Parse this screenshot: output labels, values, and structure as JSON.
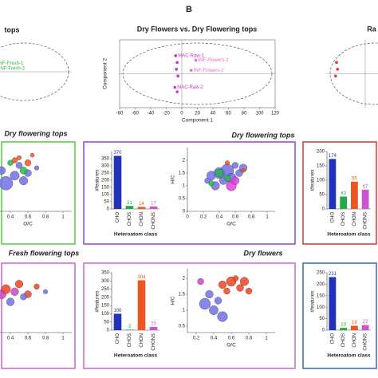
{
  "panel_label": "B",
  "chart_data": [
    {
      "type": "pca",
      "title": "tops",
      "xlim": [
        -20,
        120
      ],
      "ylim": [
        -30,
        30
      ],
      "series": [
        {
          "color": "#22bb33",
          "x": [
            8,
            10
          ],
          "y": [
            8,
            3
          ],
          "labels": [
            "INF-Fresh-1",
            "INF-Fresh-2"
          ]
        }
      ]
    },
    {
      "type": "pca",
      "title": "Dry Flowers vs. Dry Flowering tops",
      "xlabel": "Component 1",
      "ylabel": "Component 2",
      "xlim": [
        -80,
        120
      ],
      "ylim": [
        -30,
        30
      ],
      "xticks": [
        -80,
        -60,
        -40,
        -20,
        0,
        20,
        40,
        60,
        80,
        100,
        120
      ],
      "series": [
        {
          "color": "#cc33cc",
          "x": [
            -8,
            -6,
            -7,
            -5,
            -9,
            -6
          ],
          "y": [
            16,
            10,
            4,
            -2,
            -12,
            -16
          ],
          "labels": [
            "MAC-Raw-1",
            null,
            null,
            null,
            "MAC-Raw-2",
            null
          ]
        },
        {
          "color": "#ee66cc",
          "x": [
            18,
            12
          ],
          "y": [
            12,
            3
          ],
          "labels": [
            "INF-Flowers-1",
            "INF-Flowers-2"
          ]
        }
      ]
    },
    {
      "type": "pca",
      "title": "Ra",
      "xlim": [
        -80,
        120
      ],
      "ylim": [
        -30,
        30
      ],
      "series": [
        {
          "color": "#ee3333",
          "x": [
            -60,
            -58,
            -62
          ],
          "y": [
            10,
            4,
            -2
          ]
        }
      ]
    },
    {
      "type": "bubble",
      "title": "Dry flowering tops",
      "xlabel": "O/C",
      "xlim": [
        0.1,
        1.1
      ],
      "ylim": [
        0,
        2.5
      ],
      "xticks": [
        0.4,
        0.6,
        0.8,
        1
      ],
      "series": [
        {
          "color": "#7070e6",
          "x": [
            0.2,
            0.3,
            0.35,
            0.45,
            0.5,
            0.6,
            0.55,
            0.7
          ],
          "y": [
            1.3,
            1.6,
            1.1,
            1.4,
            1.8,
            1.5,
            1.2,
            1.7
          ],
          "size": [
            60,
            30,
            90,
            40,
            20,
            25,
            35,
            10
          ]
        },
        {
          "color": "#ee5522",
          "x": [
            0.45,
            0.6,
            0.5,
            0.65
          ],
          "y": [
            2.0,
            1.9,
            2.1,
            2.2
          ],
          "size": [
            15,
            20,
            10,
            8
          ]
        },
        {
          "color": "#22bb44",
          "x": [
            0.55,
            0.4
          ],
          "y": [
            1.6,
            1.9
          ],
          "size": [
            25,
            15
          ]
        }
      ]
    },
    {
      "type": "bar",
      "ylabel": "#features",
      "xlabel": "Heteroatom class",
      "categories": [
        "CHO",
        "CHOS",
        "CHON",
        "CHONS"
      ],
      "values": [
        370,
        21,
        14,
        17
      ],
      "colors": [
        "#2233bb",
        "#22aa44",
        "#ee5522",
        "#cc55cc"
      ],
      "ylim": [
        0,
        400
      ],
      "yticks": [
        0,
        50,
        100,
        150,
        200,
        250,
        300,
        350
      ]
    },
    {
      "type": "bubble",
      "title": "Dry flowering tops",
      "xlabel": "O/C",
      "ylabel": "H/C",
      "xlim": [
        0,
        1.1
      ],
      "ylim": [
        0,
        2.5
      ],
      "xticks": [
        0,
        0.2,
        0.4,
        0.6,
        0.8,
        1
      ],
      "yticks": [
        0,
        0.5,
        1,
        1.5,
        2
      ],
      "series": [
        {
          "color": "#7070e6",
          "x": [
            0.3,
            0.4,
            0.45,
            0.5,
            0.55,
            0.6,
            0.35,
            0.65,
            0.25,
            0.7
          ],
          "y": [
            1.4,
            1.5,
            1.2,
            1.6,
            1.3,
            1.8,
            1.0,
            1.5,
            1.2,
            1.7
          ],
          "size": [
            40,
            60,
            30,
            80,
            50,
            20,
            35,
            25,
            15,
            30
          ]
        },
        {
          "color": "#22bb44",
          "x": [
            0.4,
            0.5,
            0.3
          ],
          "y": [
            1.5,
            1.3,
            1.1
          ],
          "size": [
            30,
            20,
            15
          ]
        },
        {
          "color": "#e040e0",
          "x": [
            0.55,
            0.6
          ],
          "y": [
            1.0,
            1.2
          ],
          "size": [
            50,
            30
          ]
        },
        {
          "color": "#ee5522",
          "x": [
            0.5,
            0.7
          ],
          "y": [
            1.9,
            1.6
          ],
          "size": [
            10,
            8
          ]
        }
      ]
    },
    {
      "type": "bar",
      "ylabel": "#features",
      "xlabel": "Heteroatom class",
      "categories": [
        "CHO",
        "CHOS",
        "CHON",
        "CHONS"
      ],
      "values": [
        174,
        43,
        95,
        67
      ],
      "colors": [
        "#2233bb",
        "#22aa44",
        "#ee5522",
        "#cc55cc"
      ],
      "ylim": [
        0,
        200
      ],
      "yticks": [
        0,
        50,
        100,
        150,
        200
      ]
    },
    {
      "type": "bubble",
      "title": "Fresh flowering tops",
      "xlim": [
        0.1,
        1.1
      ],
      "ylim": [
        0,
        2.5
      ],
      "xticks": [
        0.4,
        0.6,
        0.8,
        1
      ],
      "series": [
        {
          "color": "#cc44cc",
          "x": [
            0.2,
            0.3,
            0.45
          ],
          "y": [
            1.3,
            1.5,
            1.6
          ],
          "size": [
            70,
            40,
            30
          ]
        },
        {
          "color": "#ee4422",
          "x": [
            0.35,
            0.5,
            0.6,
            0.7
          ],
          "y": [
            1.7,
            1.9,
            1.5,
            1.8
          ],
          "size": [
            40,
            30,
            25,
            15
          ]
        },
        {
          "color": "#7070e6",
          "x": [
            0.4,
            0.55,
            0.8
          ],
          "y": [
            1.2,
            1.4,
            1.6
          ],
          "size": [
            30,
            20,
            10
          ]
        }
      ]
    },
    {
      "type": "bar",
      "ylabel": "#features",
      "xlabel": "Heteroatom class",
      "categories": [
        "CHO",
        "CHOS",
        "CHON",
        "CHONS"
      ],
      "values": [
        100,
        3,
        304,
        20
      ],
      "colors": [
        "#2233bb",
        "#22aa44",
        "#ee5522",
        "#cc55cc"
      ],
      "ylim": [
        0,
        350
      ],
      "yticks": [
        0,
        50,
        100,
        150,
        200,
        250,
        300,
        350
      ]
    },
    {
      "type": "bubble",
      "title": "Dry flowers",
      "xlabel": "O/C",
      "ylabel": "H/C",
      "xlim": [
        0.1,
        1.1
      ],
      "ylim": [
        0.3,
        2.3
      ],
      "xticks": [
        0.2,
        0.4,
        0.6,
        0.8,
        1
      ],
      "yticks": [
        0.5,
        1,
        1.5,
        2
      ],
      "series": [
        {
          "color": "#ee4422",
          "x": [
            0.5,
            0.6,
            0.7,
            0.8,
            0.65,
            0.75,
            0.55
          ],
          "y": [
            1.8,
            1.9,
            1.7,
            1.6,
            2.0,
            1.9,
            1.6
          ],
          "size": [
            30,
            45,
            25,
            20,
            15,
            35,
            20
          ]
        },
        {
          "color": "#7070e6",
          "x": [
            0.3,
            0.4,
            0.35,
            0.5,
            0.45
          ],
          "y": [
            1.2,
            1.0,
            1.5,
            0.8,
            1.3
          ],
          "size": [
            60,
            40,
            30,
            50,
            25
          ]
        },
        {
          "color": "#cc44cc",
          "x": [
            0.25
          ],
          "y": [
            1.9
          ],
          "size": [
            20
          ]
        }
      ]
    },
    {
      "type": "bar",
      "ylabel": "#features",
      "xlabel": "Heteroatom class",
      "categories": [
        "CHO",
        "CHOS",
        "CHON",
        "CHONS"
      ],
      "values": [
        231,
        10,
        19,
        22
      ],
      "colors": [
        "#2233bb",
        "#22aa44",
        "#ee5522",
        "#cc55cc"
      ],
      "ylim": [
        0,
        250
      ],
      "yticks": [
        0,
        50,
        100,
        150,
        200,
        250
      ]
    }
  ]
}
